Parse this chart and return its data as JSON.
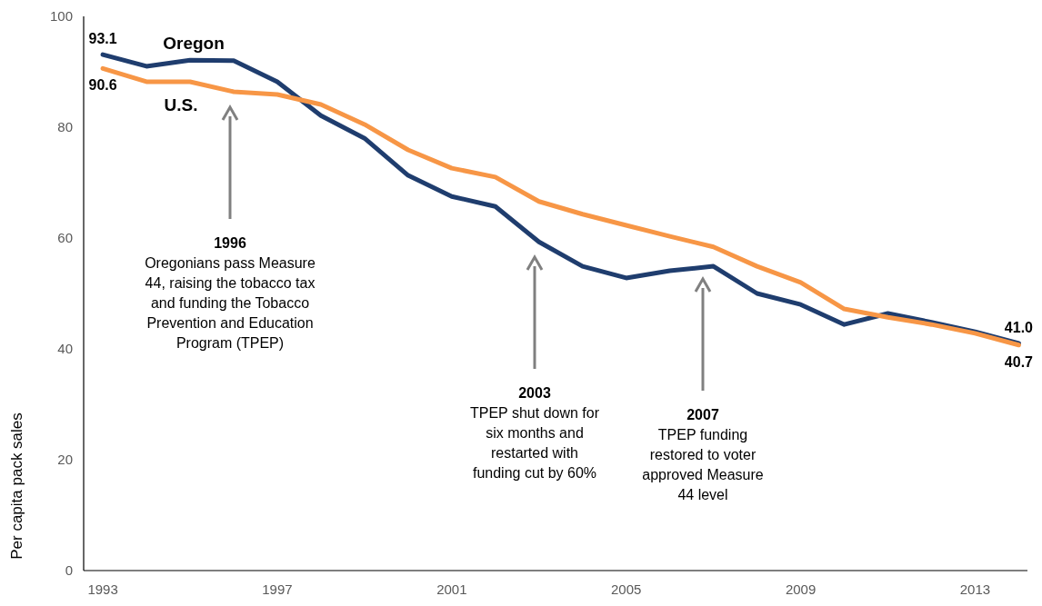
{
  "chart_data": {
    "type": "line",
    "ylabel": "Per capita pack sales",
    "x": [
      1993,
      1994,
      1995,
      1996,
      1997,
      1998,
      1999,
      2000,
      2001,
      2002,
      2003,
      2004,
      2005,
      2006,
      2007,
      2008,
      2009,
      2010,
      2011,
      2012,
      2013,
      2014
    ],
    "series": [
      {
        "name": "Oregon",
        "color": "#1f3d6e",
        "values": [
          93.1,
          91.0,
          92.1,
          92.0,
          88.2,
          82.1,
          78.0,
          71.3,
          67.5,
          65.7,
          59.3,
          54.9,
          52.8,
          54.1,
          54.9,
          50.0,
          48.0,
          44.4,
          46.4,
          44.8,
          43.1,
          41.0
        ],
        "value_labels": [
          "93.1",
          null,
          null,
          null,
          null,
          null,
          null,
          null,
          null,
          null,
          null,
          null,
          null,
          null,
          null,
          null,
          null,
          null,
          null,
          null,
          null,
          "41.0"
        ]
      },
      {
        "name": "U.S.",
        "color": "#f79646",
        "values": [
          90.6,
          88.2,
          88.2,
          86.4,
          85.9,
          84.1,
          80.5,
          75.9,
          72.6,
          71.0,
          66.6,
          64.3,
          62.3,
          60.3,
          58.4,
          54.9,
          52.0,
          47.2,
          45.7,
          44.4,
          42.8,
          40.7
        ],
        "value_labels": [
          "90.6",
          null,
          null,
          null,
          null,
          null,
          null,
          null,
          null,
          null,
          null,
          null,
          null,
          null,
          null,
          null,
          null,
          null,
          null,
          null,
          null,
          "40.7"
        ]
      }
    ],
    "xlim": [
      1992.56,
      2014.2
    ],
    "xticks": [
      1993,
      1997,
      2001,
      2005,
      2009,
      2013
    ],
    "ylim": [
      0,
      100
    ],
    "yticks": [
      0,
      20,
      40,
      60,
      80,
      100
    ],
    "grid": false,
    "legend": false,
    "marker": "none",
    "line_style": "solid",
    "annotations": [
      "1996\nOregonians pass Measure\n44, raising the tobacco tax\nand funding the Tobacco\nPrevention and Education\nProgram (TPEP)",
      "2003\nTPEP shut down for\nsix months and\nrestarted with\nfunding cut by 60%",
      "2007\nTPEP funding\nrestored to voter\napproved Measure\n44 level"
    ]
  }
}
